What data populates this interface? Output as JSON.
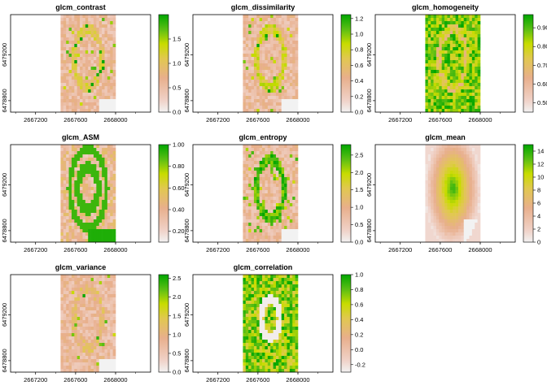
{
  "chart_data": {
    "type": "heatmap",
    "x_ticks": [
      2667200,
      2667600,
      2668000
    ],
    "y_ticks": [
      6478800,
      6479200
    ],
    "panels": [
      {
        "title": "glcm_contrast",
        "legend_ticks": [
          "0.0",
          "0.5",
          "1.0",
          "1.5"
        ],
        "range": [
          0,
          2.0
        ],
        "pattern": "texture",
        "density": 0.25
      },
      {
        "title": "glcm_dissimilarity",
        "legend_ticks": [
          "0.0",
          "0.2",
          "0.4",
          "0.6",
          "0.8",
          "1.0",
          "1.2"
        ],
        "range": [
          0,
          1.25
        ],
        "pattern": "texture",
        "density": 0.35
      },
      {
        "title": "glcm_homogeneity",
        "legend_ticks": [
          "0.50",
          "0.60",
          "0.70",
          "0.80",
          "0.90"
        ],
        "range": [
          0.45,
          0.97
        ],
        "pattern": "homog",
        "density": 0.8
      },
      {
        "title": "glcm_ASM",
        "legend_ticks": [
          "0.20",
          "0.40",
          "0.60",
          "0.80",
          "1.00"
        ],
        "range": [
          0.1,
          1.0
        ],
        "pattern": "asm",
        "density": 0.5
      },
      {
        "title": "glcm_entropy",
        "legend_ticks": [
          "0.0",
          "0.5",
          "1.0",
          "1.5",
          "2.0",
          "2.5"
        ],
        "range": [
          0,
          2.8
        ],
        "pattern": "texture",
        "density": 0.6
      },
      {
        "title": "glcm_mean",
        "legend_ticks": [
          "0",
          "2",
          "4",
          "6",
          "8",
          "10",
          "12",
          "14"
        ],
        "range": [
          0,
          15
        ],
        "pattern": "mean",
        "density": 0.5
      },
      {
        "title": "glcm_variance",
        "legend_ticks": [
          "0.0",
          "0.5",
          "1.0",
          "1.5",
          "2.0",
          "2.5"
        ],
        "range": [
          0,
          2.6
        ],
        "pattern": "texture",
        "density": 0.15
      },
      {
        "title": "glcm_correlation",
        "legend_ticks": [
          "-0.2",
          "0.0",
          "0.2",
          "0.4",
          "0.6",
          "0.8",
          "1.0"
        ],
        "range": [
          -0.3,
          1.0
        ],
        "pattern": "corr",
        "density": 0.85
      }
    ]
  }
}
